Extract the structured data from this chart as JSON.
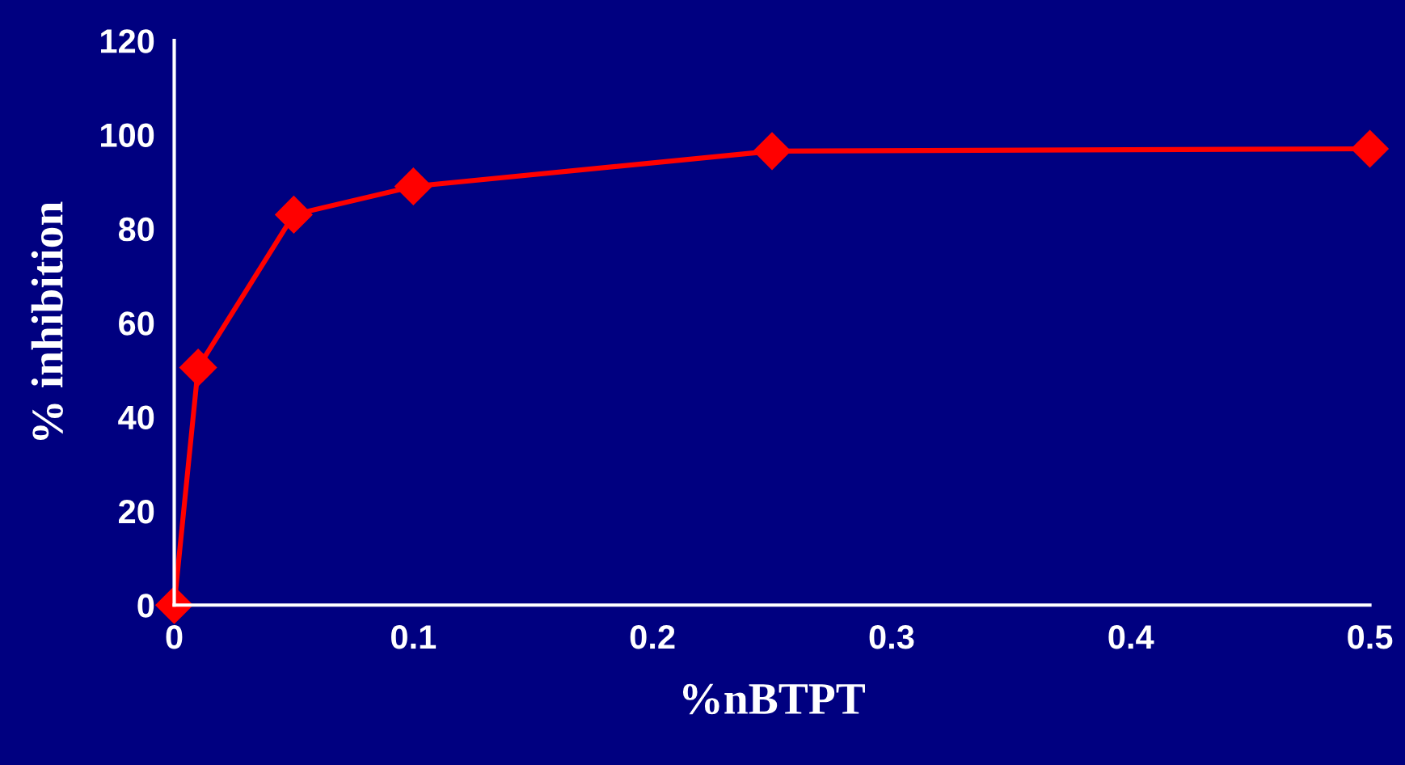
{
  "chart_data": {
    "type": "line",
    "xlabel": "%nBTPT",
    "ylabel": "% inhibition",
    "x": [
      0,
      0.01,
      0.05,
      0.1,
      0.25,
      0.5
    ],
    "series": [
      {
        "color": "#ff0000",
        "values": [
          0,
          50.5,
          83,
          89,
          96.5,
          97
        ]
      }
    ],
    "xlim": [
      0,
      0.5
    ],
    "xticks": [
      0,
      0.1,
      0.2,
      0.3,
      0.4,
      0.5
    ],
    "ylim": [
      0,
      120
    ],
    "yticks": [
      0,
      20,
      40,
      60,
      80,
      100,
      120
    ],
    "marker": "diamond",
    "line_style": "solid",
    "grid": false,
    "legend": false
  }
}
